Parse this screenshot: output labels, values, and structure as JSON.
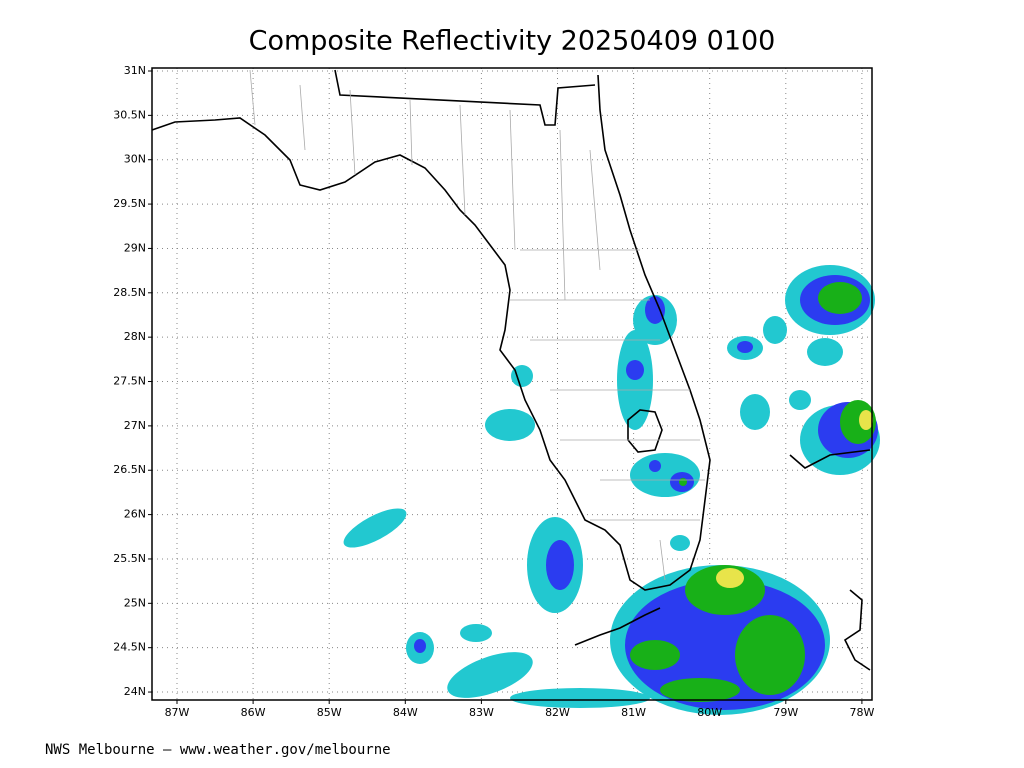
{
  "title": "Composite Reflectivity 20250409 0100",
  "lat_labels": [
    "31N",
    "30.5N",
    "30N",
    "29.5N",
    "29N",
    "28.5N",
    "28N",
    "27.5N",
    "27N",
    "26.5N",
    "26N",
    "25.5N",
    "25N",
    "24.5N",
    "24N"
  ],
  "lon_labels": [
    "87W",
    "86W",
    "85W",
    "84W",
    "83W",
    "82W",
    "81W",
    "80W",
    "79W",
    "78W"
  ],
  "footer": "NWS Melbourne — www.weather.gov/melbourne"
}
